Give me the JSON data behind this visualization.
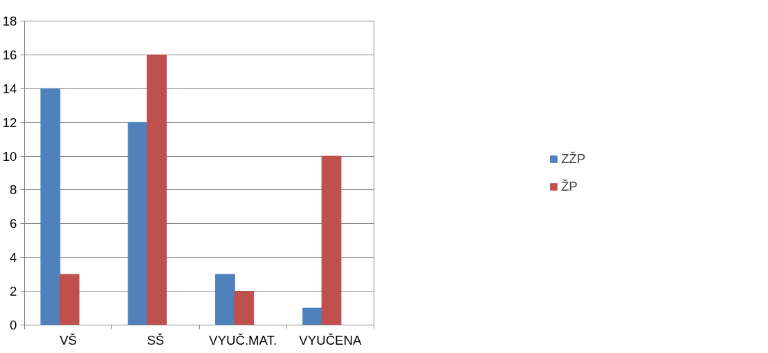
{
  "chart_data": {
    "type": "bar",
    "categories": [
      "VŠ",
      "SŠ",
      "VYUČ.MAT.",
      "VYUČENA"
    ],
    "series": [
      {
        "name": "ZŽP",
        "color": "#4f81bd",
        "values": [
          14,
          12,
          3,
          1
        ]
      },
      {
        "name": "ŽP",
        "color": "#c0504d",
        "values": [
          3,
          16,
          2,
          10
        ]
      }
    ],
    "ylim": [
      0,
      18
    ],
    "yticks": [
      0,
      2,
      4,
      6,
      8,
      10,
      12,
      14,
      16,
      18
    ],
    "grid": "y",
    "legend": "right"
  }
}
